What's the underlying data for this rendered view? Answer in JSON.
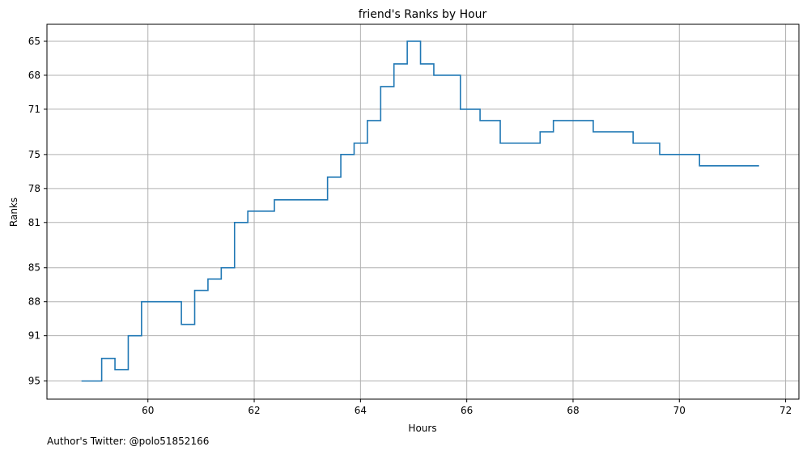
{
  "footer_text": "Author's Twitter: @polo51852166",
  "chart_data": {
    "type": "line",
    "title": "friend's Ranks by Hour",
    "xlabel": "Hours",
    "ylabel": "Ranks",
    "xlim": [
      58.1,
      72.25
    ],
    "ylim": [
      96.6,
      63.5
    ],
    "y_inverted": true,
    "grid": true,
    "step": "post",
    "line_color": "#1f77b4",
    "x_ticks": [
      60,
      62,
      64,
      66,
      68,
      70,
      72
    ],
    "x_tick_labels": [
      "60",
      "62",
      "64",
      "66",
      "68",
      "70",
      "72"
    ],
    "y_ticks": [
      65,
      68,
      71,
      75,
      78,
      81,
      85,
      88,
      91,
      95
    ],
    "y_tick_labels": [
      "65",
      "68",
      "71",
      "75",
      "78",
      "81",
      "85",
      "88",
      "91",
      "95"
    ],
    "series": [
      {
        "x": [
          58.75,
          59.13,
          59.38,
          59.63,
          59.88,
          60.63,
          60.88,
          61.13,
          61.38,
          61.63,
          61.88,
          62.38,
          63.38,
          63.63,
          63.88,
          64.13,
          64.38,
          64.63,
          64.88,
          65.13,
          65.38,
          65.88,
          66.25,
          66.63,
          67.38,
          67.63,
          68.38,
          69.13,
          69.63,
          70.38,
          71.5
        ],
        "y": [
          95,
          93,
          94,
          91,
          88,
          90,
          87,
          86,
          85,
          81,
          80,
          79,
          77,
          75,
          74,
          72,
          69,
          67,
          65,
          67,
          68,
          71,
          72,
          74,
          73,
          72,
          73,
          74,
          75,
          76,
          76
        ]
      }
    ]
  }
}
